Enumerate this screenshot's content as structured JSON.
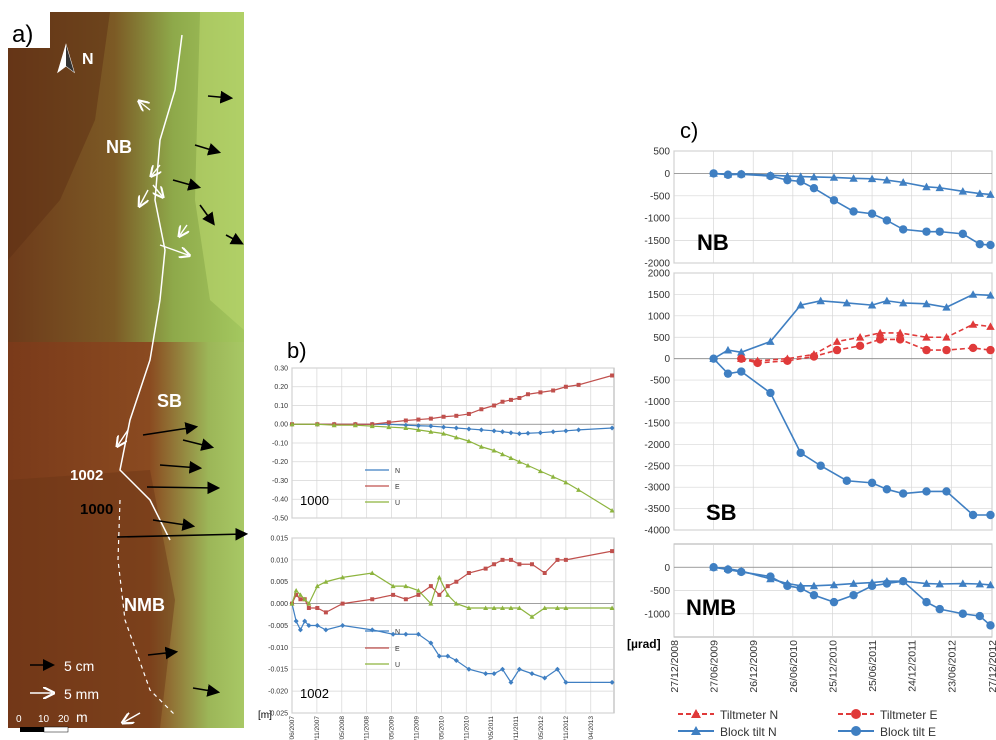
{
  "panel_a": {
    "label": "a)",
    "north": "N",
    "blocks": [
      "NB",
      "SB",
      "NMB"
    ],
    "stations": [
      "1002",
      "1000"
    ],
    "legend": {
      "arrow_black": "5 cm",
      "arrow_white": "5 mm"
    },
    "scale": {
      "ticks": [
        "0",
        "10",
        "20"
      ],
      "unit": "m"
    },
    "colors": {
      "terrain_low": "#7a3b1c",
      "terrain_mid": "#8a6a2a",
      "terrain_high": "#9cc05a"
    }
  },
  "panel_b": {
    "label": "b)",
    "unit_label": "[m]",
    "dates": [
      "01/06/2007",
      "28/11/2007",
      "26/05/2008",
      "22/11/2008",
      "21/05/2009",
      "17/11/2009",
      "16/05/2010",
      "12/11/2010",
      "11/05/2011",
      "07/11/2011",
      "05/05/2012",
      "01/11/2012",
      "30/04/2013"
    ]
  },
  "panel_c": {
    "label": "c)",
    "unit_label": "[µrad]",
    "dates": [
      "27/12/2008",
      "27/06/2009",
      "26/12/2009",
      "26/06/2010",
      "25/12/2010",
      "25/06/2011",
      "24/12/2011",
      "23/06/2012",
      "27/12/2012"
    ],
    "legend": [
      "Tiltmeter N",
      "Tiltmeter E",
      "Block tilt N",
      "Block tilt E"
    ]
  },
  "chart_data": [
    {
      "type": "line",
      "title": "1000",
      "panel": "b-top",
      "ylim": [
        -0.5,
        0.3
      ],
      "yticks": [
        0.3,
        0.2,
        0.1,
        0.0,
        -0.1,
        -0.2,
        -0.3,
        -0.4,
        -0.5
      ],
      "x": [
        "2007-06-01",
        "2007-12-01",
        "2008-04-01",
        "2008-09-01",
        "2009-01-01",
        "2009-05-01",
        "2009-09-01",
        "2009-12-01",
        "2010-03-01",
        "2010-06-01",
        "2010-09-01",
        "2010-12-01",
        "2011-03-01",
        "2011-06-01",
        "2011-08-01",
        "2011-10-01",
        "2011-12-01",
        "2012-02-01",
        "2012-05-01",
        "2012-08-01",
        "2012-11-01",
        "2013-02-01",
        "2013-10-01"
      ],
      "series": [
        {
          "name": "N",
          "color": "#3f7fc2",
          "values": [
            0,
            0,
            0,
            0,
            0,
            0,
            -0.005,
            -0.008,
            -0.01,
            -0.015,
            -0.02,
            -0.025,
            -0.03,
            -0.035,
            -0.04,
            -0.045,
            -0.05,
            -0.048,
            -0.045,
            -0.04,
            -0.035,
            -0.03,
            -0.02
          ]
        },
        {
          "name": "E",
          "color": "#c0504d",
          "values": [
            0,
            0,
            0,
            0,
            0,
            0.01,
            0.02,
            0.025,
            0.03,
            0.04,
            0.045,
            0.055,
            0.08,
            0.1,
            0.12,
            0.13,
            0.14,
            0.16,
            0.17,
            0.18,
            0.2,
            0.21,
            0.26
          ]
        },
        {
          "name": "U",
          "color": "#8db43e",
          "values": [
            0,
            0,
            -0.005,
            -0.005,
            -0.01,
            -0.015,
            -0.02,
            -0.03,
            -0.04,
            -0.05,
            -0.07,
            -0.09,
            -0.12,
            -0.14,
            -0.16,
            -0.18,
            -0.2,
            -0.22,
            -0.25,
            -0.28,
            -0.31,
            -0.35,
            -0.46
          ]
        }
      ]
    },
    {
      "type": "line",
      "title": "1002",
      "panel": "b-bottom",
      "ylim": [
        -0.025,
        0.015
      ],
      "yticks": [
        0.015,
        0.01,
        0.005,
        0.0,
        -0.005,
        -0.01,
        -0.015,
        -0.02,
        -0.025
      ],
      "x": [
        "2007-06-01",
        "2007-07-01",
        "2007-08-01",
        "2007-09-01",
        "2007-10-01",
        "2007-12-01",
        "2008-02-01",
        "2008-06-01",
        "2009-01-01",
        "2009-06-01",
        "2009-09-01",
        "2009-12-01",
        "2010-03-01",
        "2010-05-01",
        "2010-07-01",
        "2010-09-01",
        "2010-12-01",
        "2011-04-01",
        "2011-06-01",
        "2011-08-01",
        "2011-10-01",
        "2011-12-01",
        "2012-03-01",
        "2012-06-01",
        "2012-09-01",
        "2012-11-01",
        "2013-10-01"
      ],
      "series": [
        {
          "name": "N",
          "color": "#3f7fc2",
          "values": [
            0,
            -0.004,
            -0.006,
            -0.004,
            -0.005,
            -0.005,
            -0.006,
            -0.005,
            -0.006,
            -0.007,
            -0.007,
            -0.007,
            -0.009,
            -0.012,
            -0.012,
            -0.013,
            -0.015,
            -0.016,
            -0.016,
            -0.015,
            -0.018,
            -0.015,
            -0.016,
            -0.017,
            -0.015,
            -0.018,
            -0.018
          ]
        },
        {
          "name": "E",
          "color": "#c0504d",
          "values": [
            0,
            0.002,
            0.001,
            0.001,
            -0.001,
            -0.001,
            -0.002,
            0,
            0.001,
            0.002,
            0.001,
            0.002,
            0.004,
            0.002,
            0.004,
            0.005,
            0.007,
            0.008,
            0.009,
            0.01,
            0.01,
            0.009,
            0.009,
            0.007,
            0.01,
            0.01,
            0.012
          ]
        },
        {
          "name": "U",
          "color": "#8db43e",
          "values": [
            0,
            0.003,
            0.002,
            0.001,
            0,
            0.004,
            0.005,
            0.006,
            0.007,
            0.004,
            0.004,
            0.003,
            0,
            0.006,
            0.002,
            0,
            -0.001,
            -0.001,
            -0.001,
            -0.001,
            -0.001,
            -0.001,
            -0.003,
            -0.001,
            -0.001,
            -0.001,
            -0.001
          ]
        }
      ]
    },
    {
      "type": "line",
      "title": "NB",
      "panel": "c-top",
      "ylim": [
        -2000,
        500
      ],
      "yticks": [
        500,
        0,
        -500,
        -1000,
        -1500,
        -2000
      ],
      "x": [
        "2009-06-27",
        "2009-09-01",
        "2009-11-01",
        "2010-03-15",
        "2010-06-01",
        "2010-08-01",
        "2010-10-01",
        "2011-01-01",
        "2011-04-01",
        "2011-06-25",
        "2011-09-01",
        "2011-11-15",
        "2012-03-01",
        "2012-05-01",
        "2012-08-15",
        "2012-11-01",
        "2012-12-20"
      ],
      "series": [
        {
          "name": "Block tilt N",
          "color": "#3f7fc2",
          "marker": "triangle",
          "values": [
            0,
            -20,
            -10,
            -40,
            -60,
            -70,
            -80,
            -90,
            -110,
            -120,
            -150,
            -200,
            -300,
            -320,
            -400,
            -450,
            -470
          ]
        },
        {
          "name": "Block tilt E",
          "color": "#3f7fc2",
          "marker": "circle",
          "values": [
            0,
            -30,
            -20,
            -60,
            -150,
            -180,
            -330,
            -600,
            -850,
            -900,
            -1050,
            -1250,
            -1300,
            -1300,
            -1350,
            -1580,
            -1600
          ]
        }
      ]
    },
    {
      "type": "line",
      "title": "SB",
      "panel": "c-middle",
      "ylim": [
        -4000,
        2000
      ],
      "yticks": [
        2000,
        1500,
        1000,
        500,
        0,
        -500,
        -1000,
        -1500,
        -2000,
        -2500,
        -3000,
        -3500,
        -4000
      ],
      "x": [
        "2009-06-27",
        "2009-09-01",
        "2009-11-01",
        "2010-03-15",
        "2010-08-01",
        "2010-11-01",
        "2011-03-01",
        "2011-06-25",
        "2011-09-01",
        "2011-11-15",
        "2012-03-01",
        "2012-06-01",
        "2012-10-01",
        "2012-12-20"
      ],
      "series": [
        {
          "name": "Block tilt N",
          "color": "#3f7fc2",
          "marker": "triangle",
          "values": [
            0,
            200,
            150,
            400,
            1250,
            1350,
            1300,
            1250,
            1350,
            1300,
            1280,
            1200,
            1500,
            1480
          ]
        },
        {
          "name": "Block tilt E",
          "color": "#3f7fc2",
          "marker": "circle",
          "values": [
            0,
            -350,
            -300,
            -800,
            -2200,
            -2500,
            -2850,
            -2900,
            -3050,
            -3150,
            -3100,
            -3100,
            -3650,
            -3650
          ]
        },
        {
          "name": "Tiltmeter N",
          "color": "#e03a3a",
          "marker": "triangle",
          "dashed": true,
          "x": [
            "2009-11-01",
            "2010-01-15",
            "2010-06-01",
            "2010-10-01",
            "2011-01-15",
            "2011-05-01",
            "2011-08-01",
            "2011-11-01",
            "2012-03-01",
            "2012-06-01",
            "2012-10-01",
            "2012-12-20"
          ],
          "values": [
            0,
            -50,
            0,
            100,
            400,
            500,
            600,
            600,
            500,
            500,
            800,
            750
          ]
        },
        {
          "name": "Tiltmeter E",
          "color": "#e03a3a",
          "marker": "circle",
          "dashed": true,
          "x": [
            "2009-11-01",
            "2010-01-15",
            "2010-06-01",
            "2010-10-01",
            "2011-01-15",
            "2011-05-01",
            "2011-08-01",
            "2011-11-01",
            "2012-03-01",
            "2012-06-01",
            "2012-10-01",
            "2012-12-20"
          ],
          "values": [
            0,
            -100,
            -50,
            50,
            200,
            300,
            450,
            450,
            200,
            200,
            250,
            200
          ]
        }
      ]
    },
    {
      "type": "line",
      "title": "NMB",
      "panel": "c-bottom",
      "ylim": [
        -1500,
        500
      ],
      "yticks": [
        0,
        -500,
        -1000
      ],
      "x": [
        "2009-06-27",
        "2009-09-01",
        "2009-11-01",
        "2010-03-15",
        "2010-06-01",
        "2010-08-01",
        "2010-10-01",
        "2011-01-01",
        "2011-04-01",
        "2011-06-25",
        "2011-09-01",
        "2011-11-15",
        "2012-03-01",
        "2012-05-01",
        "2012-08-15",
        "2012-11-01",
        "2012-12-20"
      ],
      "series": [
        {
          "name": "Block tilt N",
          "color": "#3f7fc2",
          "marker": "triangle",
          "values": [
            0,
            -30,
            -80,
            -250,
            -350,
            -400,
            -400,
            -380,
            -350,
            -330,
            -300,
            -300,
            -350,
            -360,
            -350,
            -360,
            -380
          ]
        },
        {
          "name": "Block tilt E",
          "color": "#3f7fc2",
          "marker": "circle",
          "values": [
            0,
            -50,
            -100,
            -200,
            -400,
            -450,
            -600,
            -750,
            -600,
            -400,
            -350,
            -300,
            -750,
            -900,
            -1000,
            -1050,
            -1250
          ]
        }
      ]
    }
  ]
}
